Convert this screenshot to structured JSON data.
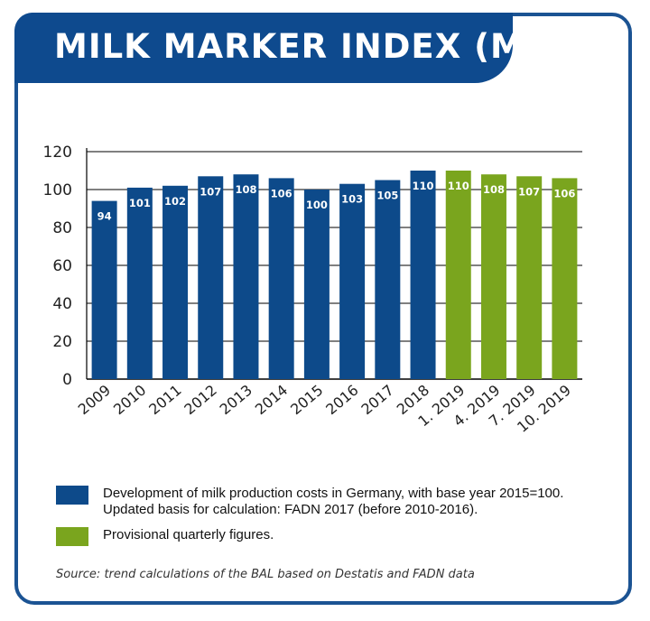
{
  "title": "MILK MARKER INDEX (MMI)",
  "colors": {
    "frame": "#1b5393",
    "banner": "#0e4a8e",
    "blue_bar": "#0d4a8a",
    "green_bar": "#7aa51e",
    "grid": "#000000"
  },
  "chart_data": {
    "type": "bar",
    "categories": [
      "2009",
      "2010",
      "2011",
      "2012",
      "2013",
      "2014",
      "2015",
      "2016",
      "2017",
      "2018",
      "1. 2019",
      "4. 2019",
      "7. 2019",
      "10. 2019"
    ],
    "values": [
      94,
      101,
      102,
      107,
      108,
      106,
      100,
      103,
      105,
      110,
      110,
      108,
      107,
      106
    ],
    "data_labels": [
      "94",
      "101",
      "102",
      "107",
      "108",
      "106",
      "100",
      "103",
      "105",
      "110",
      "110",
      "108",
      "107",
      "106"
    ],
    "bar_series": [
      "blue",
      "blue",
      "blue",
      "blue",
      "blue",
      "blue",
      "blue",
      "blue",
      "blue",
      "blue",
      "green",
      "green",
      "green",
      "green"
    ],
    "ylim": [
      0,
      120
    ],
    "yticks": [
      0,
      20,
      40,
      60,
      80,
      100,
      120
    ],
    "ytick_labels": [
      "0",
      "20",
      "40",
      "60",
      "80",
      "100",
      "120"
    ],
    "grid": true,
    "legend_placement": "bottom"
  },
  "legend": [
    {
      "text": "Development of milk production costs in Germany, with base year 2015=100.\nUpdated basis for calculation: FADN 2017 (before 2010-2016).",
      "color": "#0d4a8a"
    },
    {
      "text": "Provisional quarterly figures.",
      "color": "#7aa51e"
    }
  ],
  "source": "Source: trend calculations of the BAL based on Destatis and FADN data"
}
